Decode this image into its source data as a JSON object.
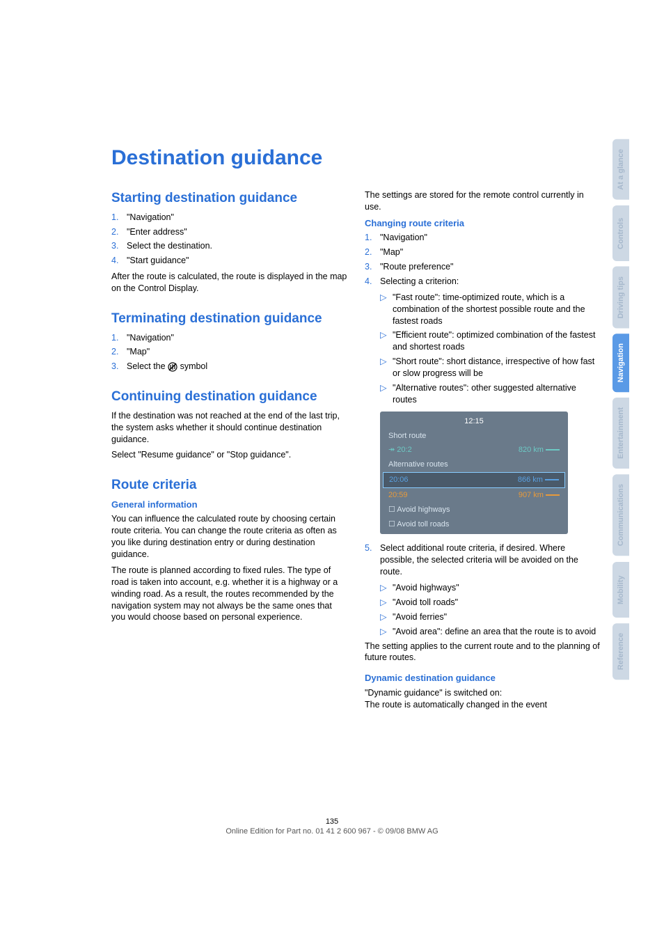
{
  "colors": {
    "accent": "#2a6fd6",
    "tab_inactive_bg": "#cdd8e4",
    "tab_inactive_text": "#a6b8cc",
    "tab_active_bg": "#5a9ae6",
    "tab_active_text": "#ffffff",
    "nav_bg": "#6a7a8a",
    "nav_teal": "#6cc9c4",
    "nav_blue": "#5aa0e0",
    "nav_orange": "#e89a3a"
  },
  "title": "Destination guidance",
  "tabs": [
    {
      "label": "At a glance",
      "active": false
    },
    {
      "label": "Controls",
      "active": false
    },
    {
      "label": "Driving tips",
      "active": false
    },
    {
      "label": "Navigation",
      "active": true
    },
    {
      "label": "Entertainment",
      "active": false
    },
    {
      "label": "Communications",
      "active": false
    },
    {
      "label": "Mobility",
      "active": false
    },
    {
      "label": "Reference",
      "active": false
    }
  ],
  "left_column": {
    "sec1": {
      "heading": "Starting destination guidance",
      "items": [
        "\"Navigation\"",
        "\"Enter address\"",
        "Select the destination.",
        "\"Start guidance\""
      ],
      "after": "After the route is calculated, the route is displayed in the map on the Control Display."
    },
    "sec2": {
      "heading": "Terminating destination guidance",
      "items": [
        "\"Navigation\"",
        "\"Map\""
      ],
      "item3_prefix": "Select the ",
      "item3_suffix": " symbol"
    },
    "sec3": {
      "heading": "Continuing destination guidance",
      "p1": "If the destination was not reached at the end of the last trip, the system asks whether it should continue destination guidance.",
      "p2": "Select \"Resume guidance\" or \"Stop guidance\"."
    },
    "sec4": {
      "heading": "Route criteria",
      "sub": "General information",
      "p1": "You can influence the calculated route by choosing certain route criteria. You can change the route criteria as often as you like during destination entry or during destination guidance.",
      "p2": "The route is planned according to fixed rules. The type of road is taken into account, e.g. whether it is a highway or a winding road. As a result, the routes recommended by the navigation system may not always be the same ones that you would choose based on personal experience."
    }
  },
  "right_column": {
    "intro": "The settings are stored for the remote control currently in use.",
    "sec1": {
      "heading": "Changing route criteria",
      "items": [
        "\"Navigation\"",
        "\"Map\"",
        "\"Route preference\"",
        "Selecting a criterion:"
      ],
      "bullets": [
        "\"Fast route\": time-optimized route, which is a combination of the shortest possible route and the fastest roads",
        "\"Efficient route\": optimized combination of the fastest and shortest roads",
        "\"Short route\": short distance, irrespective of how fast or slow progress will be",
        "\"Alternative routes\": other suggested alternative routes"
      ],
      "step5": "Select additional route criteria, if desired. Where possible, the selected criteria will be avoided on the route.",
      "bullets2": [
        "\"Avoid highways\"",
        "\"Avoid toll roads\"",
        "\"Avoid ferries\"",
        "\"Avoid area\": define an area that the route is to avoid"
      ],
      "after": "The setting applies to the current route and to the planning of future routes."
    },
    "sec2": {
      "heading": "Dynamic destination guidance",
      "p1": "\"Dynamic guidance\" is switched on:",
      "p2": "The route is automatically changed in the event"
    }
  },
  "nav_screenshot": {
    "time": "12:15",
    "rows": [
      {
        "label": "Short route",
        "right": ""
      },
      {
        "label": "↠ 20:2",
        "right": "820 km",
        "color": "#6cc9c4"
      },
      {
        "label": "Alternative routes",
        "right": ""
      },
      {
        "label": "20:06",
        "right": "866 km",
        "color": "#5aa0e0",
        "selected": true
      },
      {
        "label": "20:59",
        "right": "907 km",
        "color": "#e89a3a"
      },
      {
        "label": "☐  Avoid highways",
        "right": ""
      },
      {
        "label": "☐  Avoid toll roads",
        "right": ""
      }
    ]
  },
  "footer": {
    "page": "135",
    "edition": "Online Edition for Part no. 01 41 2 600 967  - © 09/08 BMW AG"
  }
}
